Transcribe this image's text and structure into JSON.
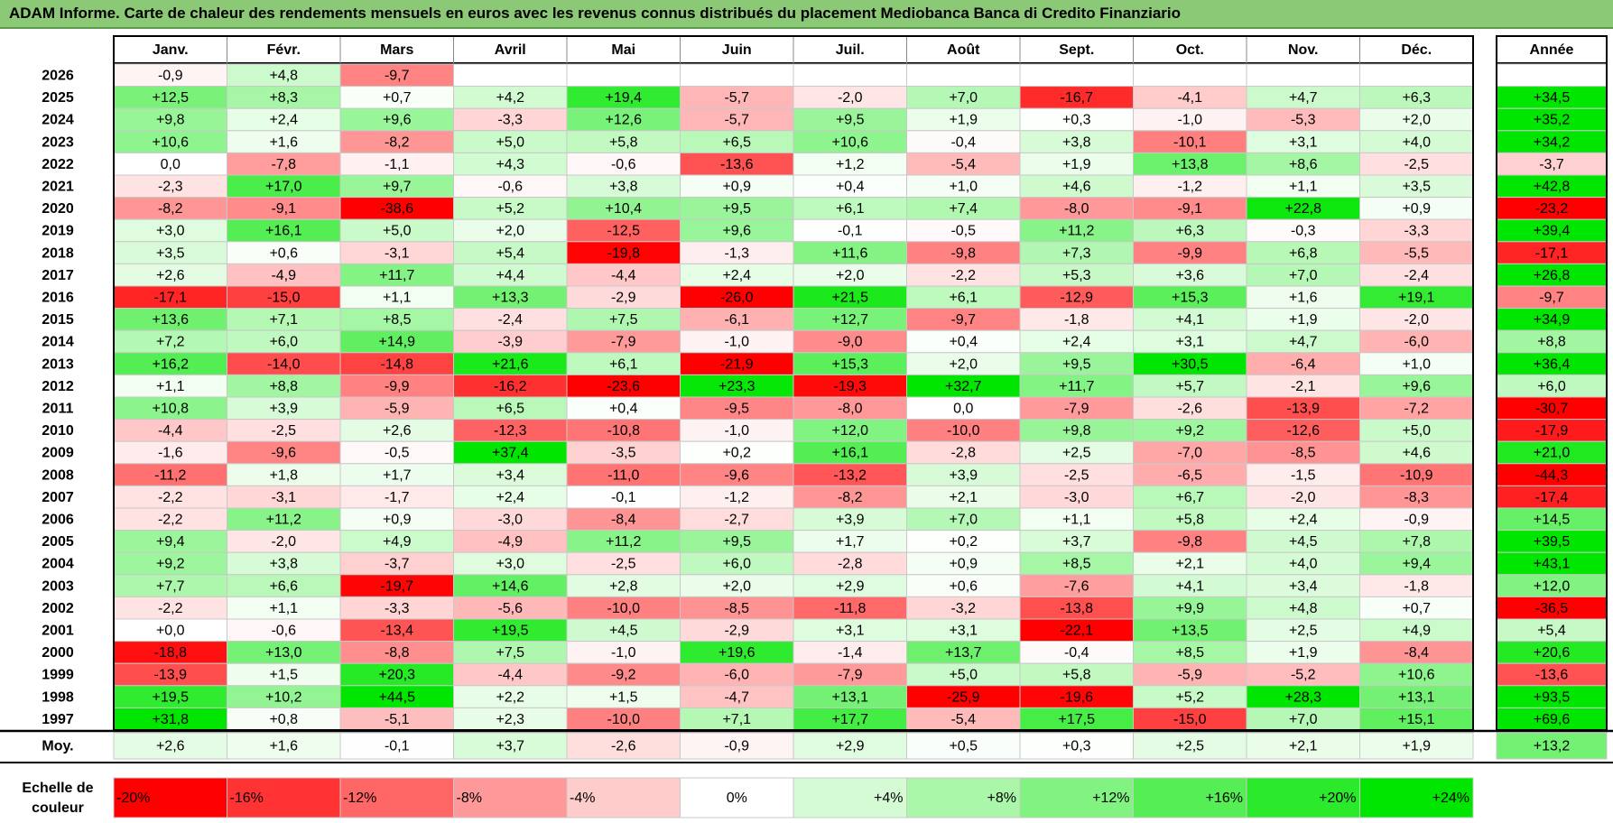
{
  "title": "ADAM Informe. Carte de chaleur des rendements mensuels en euros avec les revenus connus distribués du placement Mediobanca Banca di Credito Finanziario",
  "colors": {
    "title_bg": "#8cc976",
    "scale_red": "#ff0000",
    "scale_green": "#00e600",
    "neutral": "#ffffff"
  },
  "chart_data": {
    "type": "heatmap",
    "title": "ADAM Informe. Carte de chaleur des rendements mensuels en euros avec les revenus connus distribués du placement Mediobanca Banca di Credito Finanziario",
    "months": [
      "Janv.",
      "Févr.",
      "Mars",
      "Avril",
      "Mai",
      "Juin",
      "Juil.",
      "Août",
      "Sept.",
      "Oct.",
      "Nov.",
      "Déc."
    ],
    "annual_header": "Année",
    "rows": [
      {
        "year": "2026",
        "values": [
          "-0,9",
          "+4,8",
          "-9,7",
          "",
          "",
          "",
          "",
          "",
          "",
          "",
          "",
          ""
        ],
        "annual": ""
      },
      {
        "year": "2025",
        "values": [
          "+12,5",
          "+8,3",
          "+0,7",
          "+4,2",
          "+19,4",
          "-5,7",
          "-2,0",
          "+7,0",
          "-16,7",
          "-4,1",
          "+4,7",
          "+6,3"
        ],
        "annual": "+34,5"
      },
      {
        "year": "2024",
        "values": [
          "+9,8",
          "+2,4",
          "+9,6",
          "-3,3",
          "+12,6",
          "-5,7",
          "+9,5",
          "+1,9",
          "+0,3",
          "-1,0",
          "-5,3",
          "+2,0"
        ],
        "annual": "+35,2"
      },
      {
        "year": "2023",
        "values": [
          "+10,6",
          "+1,6",
          "-8,2",
          "+5,0",
          "+5,8",
          "+6,5",
          "+10,6",
          "-0,4",
          "+3,8",
          "-10,1",
          "+3,1",
          "+4,0"
        ],
        "annual": "+34,2"
      },
      {
        "year": "2022",
        "values": [
          "0,0",
          "-7,8",
          "-1,1",
          "+4,3",
          "-0,6",
          "-13,6",
          "+1,2",
          "-5,4",
          "+1,9",
          "+13,8",
          "+8,6",
          "-2,5"
        ],
        "annual": "-3,7"
      },
      {
        "year": "2021",
        "values": [
          "-2,3",
          "+17,0",
          "+9,7",
          "-0,6",
          "+3,8",
          "+0,9",
          "+0,4",
          "+1,0",
          "+4,6",
          "-1,2",
          "+1,1",
          "+3,5"
        ],
        "annual": "+42,8"
      },
      {
        "year": "2020",
        "values": [
          "-8,2",
          "-9,1",
          "-38,6",
          "+5,2",
          "+10,4",
          "+9,5",
          "+6,1",
          "+7,4",
          "-8,0",
          "-9,1",
          "+22,8",
          "+0,9"
        ],
        "annual": "-23,2"
      },
      {
        "year": "2019",
        "values": [
          "+3,0",
          "+16,1",
          "+5,0",
          "+2,0",
          "-12,5",
          "+9,6",
          "-0,1",
          "-0,5",
          "+11,2",
          "+6,3",
          "-0,3",
          "-3,3"
        ],
        "annual": "+39,4"
      },
      {
        "year": "2018",
        "values": [
          "+3,5",
          "+0,6",
          "-3,1",
          "+5,4",
          "-19,8",
          "-1,3",
          "+11,6",
          "-9,8",
          "+7,3",
          "-9,9",
          "+6,8",
          "-5,5"
        ],
        "annual": "-17,1"
      },
      {
        "year": "2017",
        "values": [
          "+2,6",
          "-4,9",
          "+11,7",
          "+4,4",
          "-4,4",
          "+2,4",
          "+2,0",
          "-2,2",
          "+5,3",
          "+3,6",
          "+7,0",
          "-2,4"
        ],
        "annual": "+26,8"
      },
      {
        "year": "2016",
        "values": [
          "-17,1",
          "-15,0",
          "+1,1",
          "+13,3",
          "-2,9",
          "-26,0",
          "+21,5",
          "+6,1",
          "-12,9",
          "+15,3",
          "+1,6",
          "+19,1"
        ],
        "annual": "-9,7"
      },
      {
        "year": "2015",
        "values": [
          "+13,6",
          "+7,1",
          "+8,5",
          "-2,4",
          "+7,5",
          "-6,1",
          "+12,7",
          "-9,7",
          "-1,8",
          "+4,1",
          "+1,9",
          "-2,0"
        ],
        "annual": "+34,9"
      },
      {
        "year": "2014",
        "values": [
          "+7,2",
          "+6,0",
          "+14,9",
          "-3,9",
          "-7,9",
          "-1,0",
          "-9,0",
          "+0,4",
          "+2,4",
          "+3,1",
          "+4,7",
          "-6,0"
        ],
        "annual": "+8,8"
      },
      {
        "year": "2013",
        "values": [
          "+16,2",
          "-14,0",
          "-14,8",
          "+21,6",
          "+6,1",
          "-21,9",
          "+15,3",
          "+2,0",
          "+9,5",
          "+30,5",
          "-6,4",
          "+1,0"
        ],
        "annual": "+36,4"
      },
      {
        "year": "2012",
        "values": [
          "+1,1",
          "+8,8",
          "-9,9",
          "-16,2",
          "-23,6",
          "+23,3",
          "-19,3",
          "+32,7",
          "+11,7",
          "+5,7",
          "-2,1",
          "+9,6"
        ],
        "annual": "+6,0"
      },
      {
        "year": "2011",
        "values": [
          "+10,8",
          "+3,9",
          "-5,9",
          "+6,5",
          "+0,4",
          "-9,5",
          "-8,0",
          "0,0",
          "-7,9",
          "-2,6",
          "-13,9",
          "-7,2"
        ],
        "annual": "-30,7"
      },
      {
        "year": "2010",
        "values": [
          "-4,4",
          "-2,5",
          "+2,6",
          "-12,3",
          "-10,8",
          "-1,0",
          "+12,0",
          "-10,0",
          "+9,8",
          "+9,2",
          "-12,6",
          "+5,0"
        ],
        "annual": "-17,9"
      },
      {
        "year": "2009",
        "values": [
          "-1,6",
          "-9,6",
          "-0,5",
          "+37,4",
          "-3,5",
          "+0,2",
          "+16,1",
          "-2,8",
          "+2,5",
          "-7,0",
          "-8,5",
          "+4,6"
        ],
        "annual": "+21,0"
      },
      {
        "year": "2008",
        "values": [
          "-11,2",
          "+1,8",
          "+1,7",
          "+3,4",
          "-11,0",
          "-9,6",
          "-13,2",
          "+3,9",
          "-2,5",
          "-6,5",
          "-1,5",
          "-10,9"
        ],
        "annual": "-44,3"
      },
      {
        "year": "2007",
        "values": [
          "-2,2",
          "-3,1",
          "-1,7",
          "+2,4",
          "-0,1",
          "-1,2",
          "-8,2",
          "+2,1",
          "-3,0",
          "+6,7",
          "-2,0",
          "-8,3"
        ],
        "annual": "-17,4"
      },
      {
        "year": "2006",
        "values": [
          "-2,2",
          "+11,2",
          "+0,9",
          "-3,0",
          "-8,4",
          "-2,7",
          "+3,9",
          "+7,0",
          "+1,1",
          "+5,8",
          "+2,4",
          "-0,9"
        ],
        "annual": "+14,5"
      },
      {
        "year": "2005",
        "values": [
          "+9,4",
          "-2,0",
          "+4,9",
          "-4,9",
          "+11,2",
          "+9,5",
          "+1,7",
          "+0,2",
          "+3,7",
          "-9,8",
          "+4,5",
          "+7,8"
        ],
        "annual": "+39,5"
      },
      {
        "year": "2004",
        "values": [
          "+9,2",
          "+3,8",
          "-3,7",
          "+3,0",
          "-2,5",
          "+6,0",
          "-2,8",
          "+0,9",
          "+8,5",
          "+2,1",
          "+4,0",
          "+9,4"
        ],
        "annual": "+43,1"
      },
      {
        "year": "2003",
        "values": [
          "+7,7",
          "+6,6",
          "-19,7",
          "+14,6",
          "+2,8",
          "+2,0",
          "+2,9",
          "+0,6",
          "-7,6",
          "+4,1",
          "+3,4",
          "-1,8"
        ],
        "annual": "+12,0"
      },
      {
        "year": "2002",
        "values": [
          "-2,2",
          "+1,1",
          "-3,3",
          "-5,6",
          "-10,0",
          "-8,5",
          "-11,8",
          "-3,2",
          "-13,8",
          "+9,9",
          "+4,8",
          "+0,7"
        ],
        "annual": "-36,5"
      },
      {
        "year": "2001",
        "values": [
          "+0,0",
          "-0,6",
          "-13,4",
          "+19,5",
          "+4,5",
          "-2,9",
          "+3,1",
          "+3,1",
          "-22,1",
          "+13,5",
          "+2,5",
          "+4,9"
        ],
        "annual": "+5,4"
      },
      {
        "year": "2000",
        "values": [
          "-18,8",
          "+13,0",
          "-8,8",
          "+7,5",
          "-1,0",
          "+19,6",
          "-1,4",
          "+13,7",
          "-0,4",
          "+8,5",
          "+1,9",
          "-8,4"
        ],
        "annual": "+20,6"
      },
      {
        "year": "1999",
        "values": [
          "-13,9",
          "+1,5",
          "+20,3",
          "-4,4",
          "-9,2",
          "-6,0",
          "-7,9",
          "+5,0",
          "+5,8",
          "-5,9",
          "-5,2",
          "+10,6"
        ],
        "annual": "-13,6"
      },
      {
        "year": "1998",
        "values": [
          "+19,5",
          "+10,2",
          "+44,5",
          "+2,2",
          "+1,5",
          "-4,7",
          "+13,1",
          "-25,9",
          "-19,6",
          "+5,2",
          "+28,3",
          "+13,1"
        ],
        "annual": "+93,5"
      },
      {
        "year": "1997",
        "values": [
          "+31,8",
          "+0,8",
          "-5,1",
          "+2,3",
          "-10,0",
          "+7,1",
          "+17,7",
          "-5,4",
          "+17,5",
          "-15,0",
          "+7,0",
          "+15,1"
        ],
        "annual": "+69,6"
      }
    ],
    "average": {
      "label": "Moy.",
      "values": [
        "+2,6",
        "+1,6",
        "-0,1",
        "+3,7",
        "-2,6",
        "-0,9",
        "+2,9",
        "+0,5",
        "+0,3",
        "+2,5",
        "+2,1",
        "+1,9"
      ],
      "annual": "+13,2"
    },
    "scale": {
      "label_line1": "Echelle de",
      "label_line2": "couleur",
      "steps": [
        "-20%",
        "-16%",
        "-12%",
        "-8%",
        "-4%",
        "0%",
        "+4%",
        "+8%",
        "+12%",
        "+16%",
        "+20%",
        "+24%"
      ],
      "step_values": [
        -20,
        -16,
        -12,
        -8,
        -4,
        0,
        4,
        8,
        12,
        16,
        20,
        24
      ]
    }
  }
}
